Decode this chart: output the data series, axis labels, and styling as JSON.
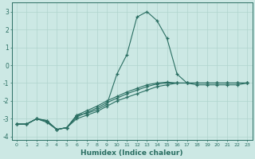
{
  "xlabel": "Humidex (Indice chaleur)",
  "bg_color": "#cce8e4",
  "grid_color": "#b0d4ce",
  "line_color": "#2a6e62",
  "xlim": [
    -0.5,
    23.5
  ],
  "ylim": [
    -4.2,
    3.5
  ],
  "x": [
    0,
    1,
    2,
    3,
    4,
    5,
    6,
    7,
    8,
    9,
    10,
    11,
    12,
    13,
    14,
    15,
    16,
    17,
    18,
    19,
    20,
    21,
    22,
    23
  ],
  "line_main": [
    -3.3,
    -3.3,
    -3.0,
    -3.1,
    -3.6,
    -3.5,
    -2.8,
    -2.7,
    -2.5,
    -2.2,
    -0.5,
    0.6,
    2.7,
    3.0,
    2.5,
    1.5,
    -0.5,
    -1.0,
    -1.1,
    -1.1,
    -1.1,
    -1.1,
    -1.1,
    -1.0
  ],
  "line_a": [
    -3.3,
    -3.3,
    -3.0,
    -3.2,
    -3.6,
    -3.5,
    -3.0,
    -2.8,
    -2.6,
    -2.3,
    -2.0,
    -1.8,
    -1.6,
    -1.4,
    -1.2,
    -1.1,
    -1.0,
    -1.0,
    -1.0,
    -1.0,
    -1.0,
    -1.0,
    -1.0,
    -1.0
  ],
  "line_b": [
    -3.3,
    -3.3,
    -3.0,
    -3.15,
    -3.6,
    -3.5,
    -2.9,
    -2.65,
    -2.4,
    -2.1,
    -1.85,
    -1.6,
    -1.4,
    -1.2,
    -1.05,
    -1.0,
    -1.0,
    -1.0,
    -1.0,
    -1.0,
    -1.0,
    -1.0,
    -1.0,
    -1.0
  ],
  "line_c": [
    -3.3,
    -3.3,
    -3.0,
    -3.1,
    -3.6,
    -3.5,
    -2.8,
    -2.55,
    -2.3,
    -2.0,
    -1.75,
    -1.5,
    -1.3,
    -1.1,
    -1.0,
    -0.95,
    -1.0,
    -1.0,
    -1.0,
    -1.0,
    -1.0,
    -1.0,
    -1.0,
    -1.0
  ]
}
